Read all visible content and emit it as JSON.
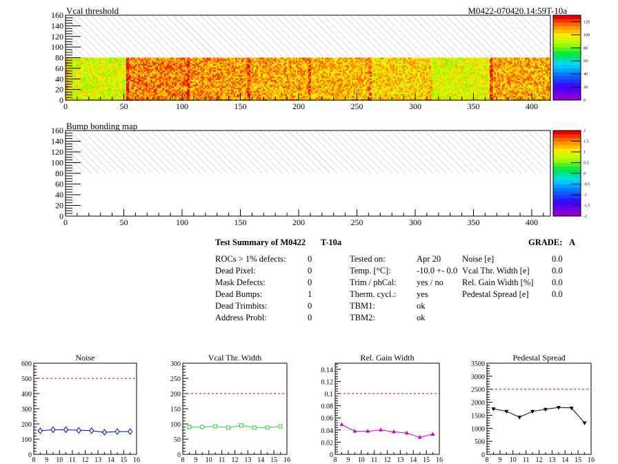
{
  "chart_data": [
    {
      "type": "heatmap",
      "title": "Vcal threshold",
      "run_label": "M0422-070420.14:59T-10a",
      "x_ticks": [
        "0",
        "50",
        "100",
        "150",
        "200",
        "250",
        "300",
        "350",
        "400"
      ],
      "y_ticks": [
        "0",
        "20",
        "40",
        "60",
        "80",
        "100",
        "120",
        "140",
        "160"
      ],
      "xlim": [
        0,
        416
      ],
      "ylim": [
        0,
        160
      ],
      "filled_rows": [
        0,
        80
      ],
      "hatched_rows": [
        80,
        160
      ],
      "z_ticks": [
        "0",
        "20",
        "40",
        "60",
        "80",
        "100",
        "120"
      ],
      "zlim": [
        0,
        130
      ],
      "column_bands": [
        {
          "x": [
            0,
            52
          ],
          "z": 95
        },
        {
          "x": [
            52,
            104
          ],
          "z": 115
        },
        {
          "x": [
            104,
            156
          ],
          "z": 112
        },
        {
          "x": [
            156,
            208
          ],
          "z": 110
        },
        {
          "x": [
            208,
            260
          ],
          "z": 108
        },
        {
          "x": [
            260,
            312
          ],
          "z": 104
        },
        {
          "x": [
            312,
            364
          ],
          "z": 96
        },
        {
          "x": [
            364,
            416
          ],
          "z": 110
        }
      ]
    },
    {
      "type": "heatmap",
      "title": "Bump bonding map",
      "x_ticks": [
        "0",
        "50",
        "100",
        "150",
        "200",
        "250",
        "300",
        "350",
        "400"
      ],
      "y_ticks": [
        "0",
        "20",
        "40",
        "60",
        "80",
        "100",
        "120",
        "140",
        "160"
      ],
      "xlim": [
        0,
        416
      ],
      "ylim": [
        0,
        160
      ],
      "hatched_rows": [
        80,
        160
      ],
      "z_ticks": [
        "-2",
        "-1.5",
        "-1",
        "-0.5",
        "0",
        "0.5",
        "1",
        "1.5",
        "2"
      ],
      "zlim": [
        -2,
        2
      ]
    },
    {
      "type": "line",
      "title": "Noise",
      "x": [
        8.5,
        9.5,
        10.5,
        11.5,
        12.5,
        13.5,
        14.5,
        15.5
      ],
      "values": [
        155,
        162,
        162,
        158,
        156,
        145,
        150,
        150
      ],
      "xlim": [
        8,
        16
      ],
      "ylim": [
        0,
        600
      ],
      "x_ticks": [
        "8",
        "9",
        "10",
        "11",
        "12",
        "13",
        "14",
        "15",
        "16"
      ],
      "y_ticks": [
        "0",
        "100",
        "200",
        "300",
        "400",
        "500",
        "600"
      ],
      "reference_line": 500,
      "color": "#0000cc",
      "marker": "diamond"
    },
    {
      "type": "line",
      "title": "Vcal Thr. Width",
      "x": [
        8.5,
        9.5,
        10.5,
        11.5,
        12.5,
        13.5,
        14.5,
        15.5
      ],
      "values": [
        90,
        90,
        92,
        88,
        95,
        88,
        88,
        92
      ],
      "xlim": [
        8,
        16
      ],
      "ylim": [
        0,
        300
      ],
      "x_ticks": [
        "8",
        "9",
        "10",
        "11",
        "12",
        "13",
        "14",
        "15",
        "16"
      ],
      "y_ticks": [
        "0",
        "50",
        "100",
        "150",
        "200",
        "250",
        "300"
      ],
      "reference_line": 200,
      "color": "#33cc33",
      "marker": "square"
    },
    {
      "type": "line",
      "title": "Rel. Gain Width",
      "x": [
        8.5,
        9.5,
        10.5,
        11.5,
        12.5,
        13.5,
        14.5,
        15.5
      ],
      "values": [
        0.049,
        0.038,
        0.038,
        0.04,
        0.037,
        0.035,
        0.028,
        0.033
      ],
      "xlim": [
        8,
        16
      ],
      "ylim": [
        0,
        0.15
      ],
      "x_ticks": [
        "8",
        "9",
        "10",
        "11",
        "12",
        "13",
        "14",
        "15",
        "16"
      ],
      "y_ticks": [
        "0",
        "0.02",
        "0.04",
        "0.06",
        "0.08",
        "0.1",
        "0.12",
        "0.14"
      ],
      "reference_line": 0.1,
      "color": "#cc00cc",
      "marker": "triangle-up"
    },
    {
      "type": "line",
      "title": "Pedestal Spread",
      "x": [
        8.5,
        9.5,
        10.5,
        11.5,
        12.5,
        13.5,
        14.5,
        15.5
      ],
      "values": [
        1750,
        1650,
        1430,
        1650,
        1730,
        1800,
        1780,
        1210
      ],
      "xlim": [
        8,
        16
      ],
      "ylim": [
        0,
        3500
      ],
      "x_ticks": [
        "8",
        "9",
        "10",
        "11",
        "12",
        "13",
        "14",
        "15",
        "16"
      ],
      "y_ticks": [
        "0",
        "500",
        "1000",
        "1500",
        "2000",
        "2500",
        "3000",
        "3500"
      ],
      "reference_line": 2500,
      "color": "#000000",
      "marker": "triangle-down"
    }
  ],
  "summary": {
    "title": "Test Summary of M0422",
    "temp_tag": "T-10a",
    "grade_label": "GRADE:",
    "grade_value": "A",
    "col1": [
      {
        "label": "ROCs > 1% defects:",
        "value": "0"
      },
      {
        "label": "Dead Pixel:",
        "value": "0"
      },
      {
        "label": "Mask Defects:",
        "value": "0"
      },
      {
        "label": "Dead Bumps:",
        "value": "1"
      },
      {
        "label": "Dead Trimbits:",
        "value": "0"
      },
      {
        "label": "Address Probl:",
        "value": "0"
      }
    ],
    "col2": [
      {
        "label": "Tested on:",
        "value": "Apr 20"
      },
      {
        "label": "Temp. [°C]:",
        "value": "-10.0 +- 0.0"
      },
      {
        "label": "Trim / phCal:",
        "value": "yes / no"
      },
      {
        "label": "Therm. cycl.:",
        "value": "yes"
      },
      {
        "label": "TBM1:",
        "value": "ok"
      },
      {
        "label": "TBM2:",
        "value": "ok"
      }
    ],
    "col3": [
      {
        "label": "Noise [e]",
        "value": "0.0"
      },
      {
        "label": "Vcal Thr. Width [e]",
        "value": "0.0"
      },
      {
        "label": "Rel. Gain Width [%]",
        "value": "0.0"
      },
      {
        "label": "Pedestal Spread [e]",
        "value": "0.0"
      }
    ]
  }
}
